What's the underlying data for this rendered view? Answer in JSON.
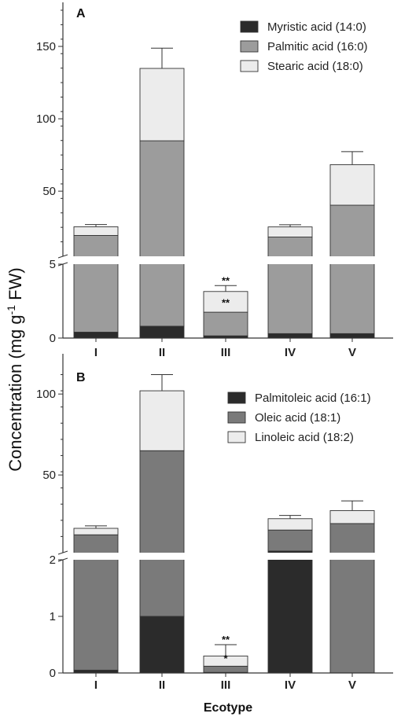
{
  "y_axis_label": "Concentration (mg g-1 FW)",
  "x_axis_label": "Ecotype",
  "colors": {
    "myristic": "#2b2b2b",
    "palmitic": "#9c9c9c",
    "stearic": "#ececec",
    "palmitoleic": "#2b2b2b",
    "oleic": "#7a7a7a",
    "linoleic": "#ececec"
  },
  "chart_data": [
    {
      "type": "bar",
      "stacked": true,
      "panel_label": "A",
      "categories": [
        "I",
        "II",
        "III",
        "IV",
        "V"
      ],
      "legend_position": "top-right",
      "y_axis_broken": true,
      "y_lower_range": [
        0,
        5
      ],
      "y_lower_ticks": [
        0,
        5
      ],
      "y_upper_range": [
        5,
        175
      ],
      "y_upper_ticks": [
        50,
        100,
        150
      ],
      "series": [
        {
          "name": "Myristic acid (14:0)",
          "color_key": "myristic",
          "values": [
            0.4,
            0.8,
            0.15,
            0.3,
            0.3
          ],
          "errors": [
            0.1,
            0.3,
            0.05,
            0.05,
            0.05
          ]
        },
        {
          "name": "Palmitic acid (16:0)",
          "color_key": "palmitic",
          "values": [
            19,
            84,
            1.6,
            18,
            40
          ],
          "errors": [
            2,
            22,
            0.3,
            2,
            10
          ]
        },
        {
          "name": "Stearic acid (18:0)",
          "color_key": "stearic",
          "values": [
            6,
            50,
            1.4,
            7,
            28
          ],
          "errors": [
            1.5,
            14,
            0.4,
            1.5,
            9
          ]
        }
      ],
      "totals": [
        25,
        134.8,
        3.15,
        25.3,
        68.3
      ],
      "significance": [
        {
          "category": "III",
          "label": "**",
          "series": "Palmitic acid (16:0)"
        },
        {
          "category": "III",
          "label": "**",
          "series": "Stearic acid (18:0)"
        }
      ]
    },
    {
      "type": "bar",
      "stacked": true,
      "panel_label": "B",
      "categories": [
        "I",
        "II",
        "III",
        "IV",
        "V"
      ],
      "legend_position": "top-right",
      "y_axis_broken": true,
      "y_lower_range": [
        0,
        2
      ],
      "y_lower_ticks": [
        0,
        1,
        2
      ],
      "y_upper_range": [
        2,
        120
      ],
      "y_upper_ticks": [
        50,
        100
      ],
      "series": [
        {
          "name": "Palmitoleic acid (16:1)",
          "color_key": "palmitoleic",
          "values": [
            0.05,
            1.0,
            0.01,
            3,
            0
          ],
          "errors": [
            0.01,
            0.9,
            0.005,
            0.5,
            0
          ]
        },
        {
          "name": "Oleic acid (18:1)",
          "color_key": "oleic",
          "values": [
            13,
            64,
            0.11,
            13,
            20
          ],
          "errors": [
            1,
            17,
            0.05,
            1.5,
            0
          ]
        },
        {
          "name": "Linoleic acid (18:2)",
          "color_key": "linoleic",
          "values": [
            4,
            37,
            0.18,
            7,
            8
          ],
          "errors": [
            1.5,
            10,
            0.2,
            2,
            6
          ]
        }
      ],
      "totals": [
        17.05,
        102,
        0.3,
        23,
        28
      ],
      "significance": [
        {
          "category": "III",
          "label": "**",
          "series": "Linoleic acid (18:2)"
        },
        {
          "category": "III",
          "label": "*",
          "series": "Oleic acid (18:1)"
        }
      ]
    }
  ]
}
